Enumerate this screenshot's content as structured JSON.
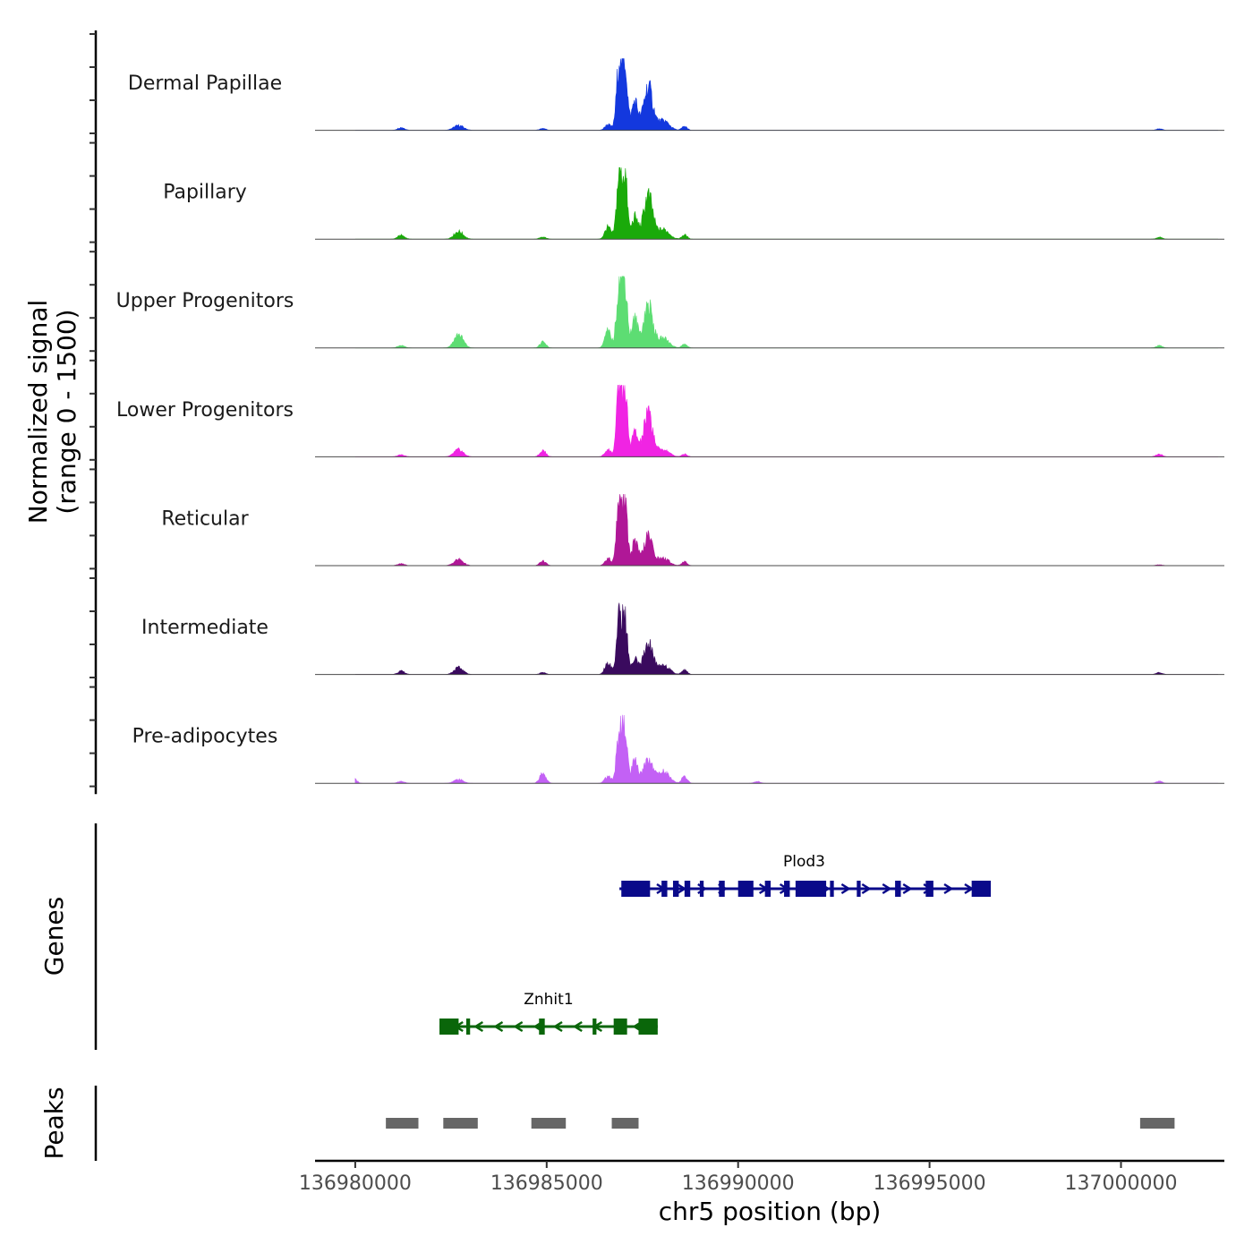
{
  "chart_data": {
    "type": "area",
    "title": "",
    "ylabel": "Normalized signal",
    "ylabel_range": "(range 0 - 1500)",
    "ylim": [
      0,
      1500
    ],
    "xlabel": "chr5 position (bp)",
    "xlim": [
      136978950,
      137002700
    ],
    "xticks": [
      136980000,
      136985000,
      136990000,
      136995000,
      137000000
    ],
    "xtick_labels": [
      "136980000",
      "136985000",
      "136990000",
      "136995000",
      "137000000"
    ],
    "tracks": [
      {
        "name": "Dermal Papillae",
        "color": "#1338de",
        "peaks": [
          [
            136981200,
            60,
            90
          ],
          [
            136982700,
            100,
            130
          ],
          [
            136984900,
            40,
            80
          ],
          [
            136986600,
            120,
            80
          ],
          [
            136986900,
            1500,
            70
          ],
          [
            136987050,
            1350,
            60
          ],
          [
            136987300,
            600,
            80
          ],
          [
            136987650,
            900,
            120
          ],
          [
            136988050,
            200,
            150
          ],
          [
            136988600,
            80,
            70
          ],
          [
            137001000,
            30,
            80
          ]
        ]
      },
      {
        "name": "Papillary",
        "color": "#1aaa0a",
        "peaks": [
          [
            136981200,
            80,
            90
          ],
          [
            136982700,
            160,
            120
          ],
          [
            136984900,
            50,
            80
          ],
          [
            136986600,
            250,
            80
          ],
          [
            136986900,
            1400,
            70
          ],
          [
            136987050,
            1250,
            60
          ],
          [
            136987300,
            450,
            80
          ],
          [
            136987650,
            900,
            120
          ],
          [
            136988050,
            200,
            150
          ],
          [
            136988600,
            90,
            70
          ],
          [
            137001000,
            40,
            80
          ]
        ]
      },
      {
        "name": "Upper Progenitors",
        "color": "#5ddd73",
        "peaks": [
          [
            136981200,
            50,
            90
          ],
          [
            136982700,
            280,
            120
          ],
          [
            136984900,
            120,
            80
          ],
          [
            136986600,
            350,
            80
          ],
          [
            136986900,
            1500,
            70
          ],
          [
            136987050,
            1300,
            60
          ],
          [
            136987300,
            600,
            80
          ],
          [
            136987650,
            900,
            120
          ],
          [
            136988050,
            200,
            150
          ],
          [
            136988600,
            80,
            70
          ],
          [
            137001000,
            50,
            80
          ]
        ]
      },
      {
        "name": "Lower Progenitors",
        "color": "#f024e3",
        "peaks": [
          [
            136981200,
            40,
            90
          ],
          [
            136982700,
            150,
            120
          ],
          [
            136984900,
            130,
            80
          ],
          [
            136986600,
            150,
            80
          ],
          [
            136986900,
            1500,
            70
          ],
          [
            136987050,
            1300,
            60
          ],
          [
            136987300,
            500,
            80
          ],
          [
            136987650,
            900,
            120
          ],
          [
            136988050,
            150,
            150
          ],
          [
            136988600,
            60,
            70
          ],
          [
            137001000,
            60,
            80
          ]
        ]
      },
      {
        "name": "Reticular",
        "color": "#b01797",
        "peaks": [
          [
            136981200,
            40,
            90
          ],
          [
            136982700,
            130,
            120
          ],
          [
            136984900,
            100,
            80
          ],
          [
            136986600,
            150,
            80
          ],
          [
            136986900,
            1400,
            70
          ],
          [
            136987050,
            1200,
            60
          ],
          [
            136987300,
            500,
            80
          ],
          [
            136987650,
            600,
            120
          ],
          [
            136988050,
            150,
            150
          ],
          [
            136988600,
            80,
            70
          ],
          [
            137001000,
            20,
            80
          ]
        ]
      },
      {
        "name": "Intermediate",
        "color": "#3a0a5e",
        "peaks": [
          [
            136981200,
            70,
            90
          ],
          [
            136982700,
            140,
            120
          ],
          [
            136984900,
            40,
            80
          ],
          [
            136986600,
            250,
            80
          ],
          [
            136986900,
            1250,
            70
          ],
          [
            136987050,
            1100,
            60
          ],
          [
            136987300,
            300,
            80
          ],
          [
            136987650,
            650,
            120
          ],
          [
            136988050,
            200,
            150
          ],
          [
            136988600,
            100,
            70
          ],
          [
            137001000,
            40,
            80
          ]
        ]
      },
      {
        "name": "Pre-adipocytes",
        "color": "#c361f5",
        "peaks": [
          [
            136980000,
            80,
            60
          ],
          [
            136981200,
            40,
            90
          ],
          [
            136982700,
            80,
            120
          ],
          [
            136984900,
            220,
            80
          ],
          [
            136986600,
            150,
            80
          ],
          [
            136986900,
            1150,
            70
          ],
          [
            136987050,
            1050,
            60
          ],
          [
            136987300,
            450,
            80
          ],
          [
            136987650,
            500,
            120
          ],
          [
            136988050,
            250,
            150
          ],
          [
            136988600,
            150,
            70
          ],
          [
            136990500,
            40,
            80
          ],
          [
            137001000,
            40,
            80
          ]
        ]
      }
    ],
    "genes_track_label": "Genes",
    "genes": [
      {
        "name": "Plod3",
        "strand": "+",
        "color": "#0a0a8a",
        "start": 136986900,
        "end": 136996550,
        "exons": [
          [
            136986950,
            136987700
          ],
          [
            136988000,
            136988150
          ],
          [
            136988300,
            136988450
          ],
          [
            136988600,
            136988750
          ],
          [
            136989000,
            136989100
          ],
          [
            136989500,
            136989650
          ],
          [
            136990000,
            136990400
          ],
          [
            136990700,
            136990850
          ],
          [
            136991200,
            136991350
          ],
          [
            136991500,
            136992300
          ],
          [
            136992400,
            136992500
          ],
          [
            136993100,
            136993200
          ],
          [
            136994100,
            136994250
          ],
          [
            136994900,
            136995100
          ],
          [
            136996100,
            136996600
          ]
        ]
      },
      {
        "name": "Znhit1",
        "strand": "-",
        "color": "#0a660a",
        "start": 136982200,
        "end": 136987900,
        "exons": [
          [
            136982200,
            136982700
          ],
          [
            136982900,
            136983000
          ],
          [
            136984800,
            136984950
          ],
          [
            136986200,
            136986300
          ],
          [
            136986750,
            136987100
          ],
          [
            136987400,
            136987900
          ]
        ]
      }
    ],
    "peaks_track_label": "Peaks",
    "peak_regions": [
      [
        136980800,
        136981650
      ],
      [
        136982300,
        136983200
      ],
      [
        136984600,
        136985500
      ],
      [
        136986700,
        136987400
      ],
      [
        137000500,
        137001400
      ]
    ]
  }
}
